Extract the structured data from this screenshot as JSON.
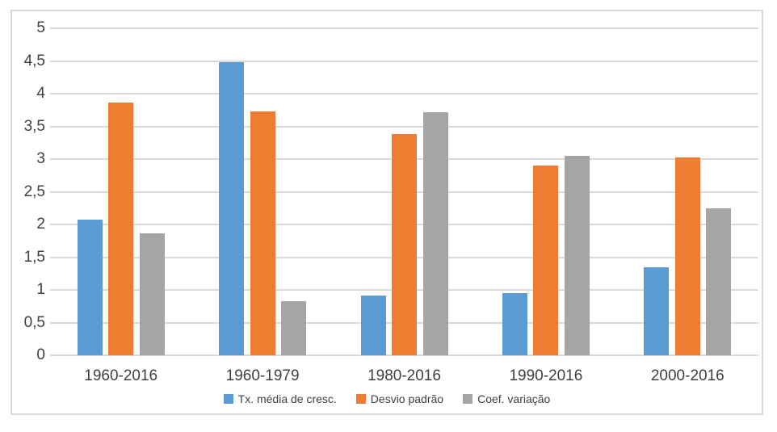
{
  "chart_data": {
    "type": "bar",
    "title": "",
    "xlabel": "",
    "ylabel": "",
    "categories": [
      "1960-2016",
      "1960-1979",
      "1980-2016",
      "1990-2016",
      "2000-2016"
    ],
    "series": [
      {
        "name": "Tx. média de cresc.",
        "color": "#5B9BD5",
        "values": [
          2.07,
          4.48,
          0.91,
          0.95,
          1.34
        ]
      },
      {
        "name": "Desvio padrão",
        "color": "#ED7D31",
        "values": [
          3.87,
          3.73,
          3.38,
          2.9,
          3.02
        ]
      },
      {
        "name": "Coef. variação",
        "color": "#A5A5A5",
        "values": [
          1.87,
          0.83,
          3.72,
          3.05,
          2.25
        ]
      }
    ],
    "ylim": [
      0,
      5
    ],
    "ytick_step": 0.5,
    "ytick_labels": [
      "0",
      "0,5",
      "1",
      "1,5",
      "2",
      "2,5",
      "3",
      "3,5",
      "4",
      "4,5",
      "5"
    ],
    "decimal_separator": ",",
    "grid": true,
    "legend_position": "bottom"
  },
  "colors": {
    "gridline": "#d9d9d9",
    "frame_border": "#d9d9d9",
    "axis_text": "#404040",
    "legend_text": "#404040",
    "background": "#ffffff"
  }
}
